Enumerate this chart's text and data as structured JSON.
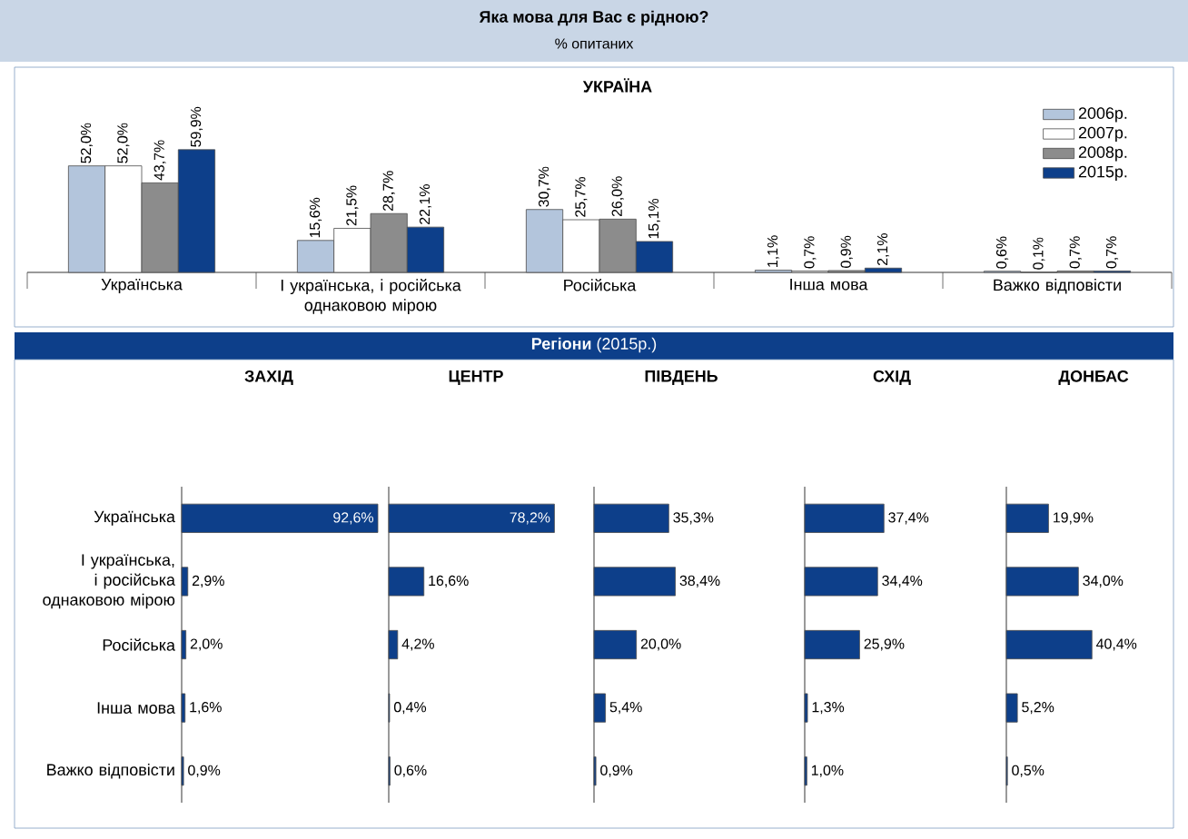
{
  "chart_data": [
    {
      "type": "bar",
      "title": "Яка мова для Вас є рідною?",
      "subtitle": "% опитаних",
      "annotations": [
        "УКРАЇНА"
      ],
      "categories": [
        "Українська",
        "І українська, і російська однаковою мірою",
        "Російська",
        "Інша мова",
        "Важко відповісти"
      ],
      "series": [
        {
          "name": "2006р.",
          "color": "#b3c5dc",
          "values": [
            52.0,
            15.6,
            30.7,
            1.1,
            0.6
          ],
          "value_labels": [
            "52,0%",
            "15,6%",
            "30,7%",
            "1,1%",
            "0,6%"
          ]
        },
        {
          "name": "2007р.",
          "color": "#ffffff",
          "values": [
            52.0,
            21.5,
            25.7,
            0.7,
            0.1
          ],
          "value_labels": [
            "52,0%",
            "21,5%",
            "25,7%",
            "0,7%",
            "0,1%"
          ]
        },
        {
          "name": "2008р.",
          "color": "#8c8c8c",
          "values": [
            43.7,
            28.7,
            26.0,
            0.9,
            0.7
          ],
          "value_labels": [
            "43,7%",
            "28,7%",
            "26,0%",
            "0,9%",
            "0,7%"
          ]
        },
        {
          "name": "2015р.",
          "color": "#0d3f8a",
          "values": [
            59.9,
            22.1,
            15.1,
            2.1,
            0.7
          ],
          "value_labels": [
            "59,9%",
            "22,1%",
            "15,1%",
            "2,1%",
            "0,7%"
          ]
        }
      ],
      "legend": "top right",
      "tick_labels": "x"
    },
    {
      "type": "bar",
      "orientation": "horizontal",
      "title": "ЗАХІД",
      "annotations": [
        "**Регіони** (2015р.)"
      ],
      "categories": [
        "Українська",
        "І українська, і російська однаковою мірою",
        "Російська",
        "Інша мова",
        "Важко відповісти"
      ],
      "color": "#0d3f8a",
      "values": [
        92.6,
        2.9,
        2.0,
        1.6,
        0.9
      ],
      "value_labels": [
        "92,6%",
        "2,9%",
        "2,0%",
        "1,6%",
        "0,9%"
      ],
      "tick_labels": "y"
    },
    {
      "type": "bar",
      "orientation": "horizontal",
      "title": "ЦЕНТР",
      "categories": [
        null,
        null,
        null,
        null,
        null
      ],
      "color": "#0d3f8a",
      "values": [
        78.2,
        16.6,
        4.2,
        0.4,
        0.6
      ],
      "value_labels": [
        "78,2%",
        "16,6%",
        "4,2%",
        "0,4%",
        "0,6%"
      ],
      "tick_labels": false
    },
    {
      "type": "bar",
      "orientation": "horizontal",
      "title": "ПІВДЕНЬ",
      "categories": [
        null,
        null,
        null,
        null,
        null
      ],
      "color": "#0d3f8a",
      "values": [
        35.3,
        38.4,
        20.0,
        5.4,
        0.9
      ],
      "value_labels": [
        "35,3%",
        "38,4%",
        "20,0%",
        "5,4%",
        "0,9%"
      ],
      "tick_labels": false
    },
    {
      "type": "bar",
      "orientation": "horizontal",
      "title": "СХІД",
      "categories": [
        null,
        null,
        null,
        null,
        null
      ],
      "color": "#0d3f8a",
      "values": [
        37.4,
        34.4,
        25.9,
        1.3,
        1.0
      ],
      "value_labels": [
        "37,4%",
        "34,4%",
        "25,9%",
        "1,3%",
        "1,0%"
      ],
      "tick_labels": false
    },
    {
      "type": "bar",
      "orientation": "horizontal",
      "title": "ДОНБАС",
      "categories": [
        null,
        null,
        null,
        null,
        null
      ],
      "color": "#0d3f8a",
      "values": [
        19.9,
        34.0,
        40.4,
        5.2,
        0.5
      ],
      "value_labels": [
        "19,9%",
        "34,0%",
        "40,4%",
        "5,2%",
        "0,5%"
      ],
      "tick_labels": false
    }
  ]
}
